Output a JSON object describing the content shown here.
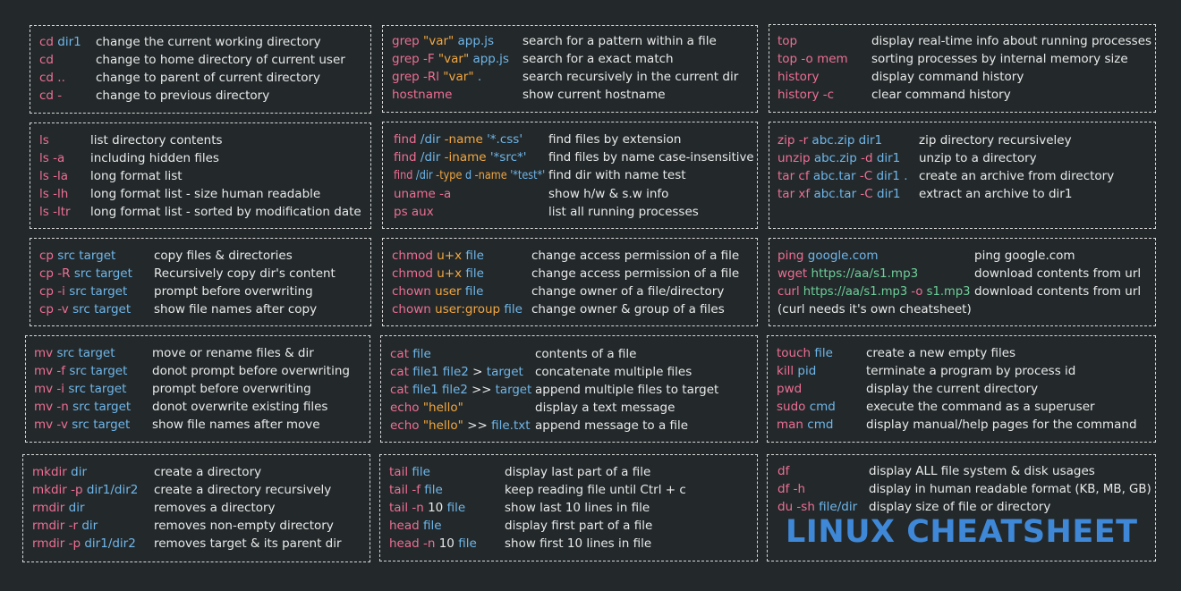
{
  "title": "LINUX CHEATSHEET",
  "colors": {
    "pink": "#ee6e93",
    "blue": "#6fb6ea",
    "orange": "#f2a640",
    "green": "#6ecf9a",
    "text": "#e9e9e9",
    "background": "#23292b",
    "title": "#3f88d8"
  },
  "blocks": [
    {
      "id": "cd",
      "rows": [
        {
          "cmd": [
            [
              "cd ",
              "pink"
            ],
            [
              "dir1",
              "blue"
            ]
          ],
          "desc": "change the current working directory"
        },
        {
          "cmd": [
            [
              "cd",
              "pink"
            ]
          ],
          "desc": "change to home directory of current user"
        },
        {
          "cmd": [
            [
              "cd ..",
              "pink"
            ]
          ],
          "desc": "change to parent of current directory"
        },
        {
          "cmd": [
            [
              "cd -",
              "pink"
            ]
          ],
          "desc": "change to previous directory"
        }
      ]
    },
    {
      "id": "grep",
      "rows": [
        {
          "cmd": [
            [
              "grep ",
              "pink"
            ],
            [
              "\"var\" ",
              "orange"
            ],
            [
              "app.js",
              "blue"
            ]
          ],
          "desc": "search for a pattern within a file"
        },
        {
          "cmd": [
            [
              "grep -F ",
              "pink"
            ],
            [
              "\"var\" ",
              "orange"
            ],
            [
              "app.js",
              "blue"
            ]
          ],
          "desc": "search for a exact match"
        },
        {
          "cmd": [
            [
              "grep -Rl ",
              "pink"
            ],
            [
              "\"var\" ",
              "orange"
            ],
            [
              ".",
              "blue"
            ]
          ],
          "desc": "search recursively in the current dir"
        },
        {
          "cmd": [
            [
              "hostname",
              "pink"
            ]
          ],
          "desc": "show current hostname"
        }
      ]
    },
    {
      "id": "top",
      "rows": [
        {
          "cmd": [
            [
              "top",
              "pink"
            ]
          ],
          "desc": "display real-time info about running processes"
        },
        {
          "cmd": [
            [
              "top -o mem",
              "pink"
            ]
          ],
          "desc": "sorting processes by internal memory size"
        },
        {
          "cmd": [
            [
              "history",
              "pink"
            ]
          ],
          "desc": "display command history"
        },
        {
          "cmd": [
            [
              "history -c",
              "pink"
            ]
          ],
          "desc": "clear command history"
        }
      ]
    },
    {
      "id": "ls",
      "rows": [
        {
          "cmd": [
            [
              "ls",
              "pink"
            ]
          ],
          "desc": "list directory contents"
        },
        {
          "cmd": [
            [
              "ls -a",
              "pink"
            ]
          ],
          "desc": "including hidden files"
        },
        {
          "cmd": [
            [
              "ls -la",
              "pink"
            ]
          ],
          "desc": "long format list"
        },
        {
          "cmd": [
            [
              "ls -lh",
              "pink"
            ]
          ],
          "desc": "long format list - size human readable"
        },
        {
          "cmd": [
            [
              "ls -ltr",
              "pink"
            ]
          ],
          "desc": "long format list - sorted by modification date"
        }
      ]
    },
    {
      "id": "find",
      "rows": [
        {
          "cmd": [
            [
              "find ",
              "pink"
            ],
            [
              "/dir ",
              "blue"
            ],
            [
              "-name ",
              "orange"
            ],
            [
              "'*.css'",
              "blue"
            ]
          ],
          "desc": "find files by extension"
        },
        {
          "cmd": [
            [
              "find ",
              "pink"
            ],
            [
              "/dir ",
              "blue"
            ],
            [
              "-iname ",
              "orange"
            ],
            [
              "'*src*'",
              "blue"
            ]
          ],
          "desc": "find files by name case-insensitive"
        },
        {
          "cmd": [
            [
              "find ",
              "pink"
            ],
            [
              "/dir ",
              "blue"
            ],
            [
              "-type ",
              "orange"
            ],
            [
              "d ",
              "blue"
            ],
            [
              "-name ",
              "orange"
            ],
            [
              "'*test*'",
              "blue"
            ]
          ],
          "desc": "find dir with name test"
        },
        {
          "cmd": [
            [
              "uname -a",
              "pink"
            ]
          ],
          "desc": "show h/w & s.w info"
        },
        {
          "cmd": [
            [
              "ps aux",
              "pink"
            ]
          ],
          "desc": "list all running processes"
        }
      ]
    },
    {
      "id": "zip",
      "rows": [
        {
          "cmd": [
            [
              "zip -r ",
              "pink"
            ],
            [
              "abc.zip dir1",
              "blue"
            ]
          ],
          "desc": "zip directory recursiveley"
        },
        {
          "cmd": [
            [
              "unzip ",
              "pink"
            ],
            [
              "abc.zip ",
              "blue"
            ],
            [
              "-d ",
              "pink"
            ],
            [
              "dir1",
              "blue"
            ]
          ],
          "desc": "unzip to a directory"
        },
        {
          "cmd": [
            [
              "tar cf ",
              "pink"
            ],
            [
              "abc.tar ",
              "blue"
            ],
            [
              "-C ",
              "pink"
            ],
            [
              "dir1 .",
              "blue"
            ]
          ],
          "desc": "create an archive from directory"
        },
        {
          "cmd": [
            [
              "tar xf ",
              "pink"
            ],
            [
              "abc.tar ",
              "blue"
            ],
            [
              "-C ",
              "pink"
            ],
            [
              "dir1",
              "blue"
            ]
          ],
          "desc": "extract an archive to dir1"
        }
      ]
    },
    {
      "id": "cp",
      "rows": [
        {
          "cmd": [
            [
              "cp ",
              "pink"
            ],
            [
              "src target",
              "blue"
            ]
          ],
          "desc": "copy files & directories"
        },
        {
          "cmd": [
            [
              "cp -R ",
              "pink"
            ],
            [
              "src target",
              "blue"
            ]
          ],
          "desc": "Recursively copy dir's content"
        },
        {
          "cmd": [
            [
              "cp -i ",
              "pink"
            ],
            [
              "src target",
              "blue"
            ]
          ],
          "desc": "prompt before overwriting"
        },
        {
          "cmd": [
            [
              "cp -v ",
              "pink"
            ],
            [
              "src target",
              "blue"
            ]
          ],
          "desc": "show file names after copy"
        }
      ]
    },
    {
      "id": "chmod",
      "rows": [
        {
          "cmd": [
            [
              "chmod ",
              "pink"
            ],
            [
              "u+x ",
              "orange"
            ],
            [
              "file",
              "blue"
            ]
          ],
          "desc": "change access permission of a file"
        },
        {
          "cmd": [
            [
              "chmod ",
              "pink"
            ],
            [
              "u+x ",
              "orange"
            ],
            [
              "file",
              "blue"
            ]
          ],
          "desc": "change access permission of a file"
        },
        {
          "cmd": [
            [
              "chown ",
              "pink"
            ],
            [
              "user ",
              "orange"
            ],
            [
              "file",
              "blue"
            ]
          ],
          "desc": "change owner of a file/directory"
        },
        {
          "cmd": [
            [
              "chown ",
              "pink"
            ],
            [
              "user:group ",
              "orange"
            ],
            [
              "file",
              "blue"
            ]
          ],
          "desc": "change owner & group of a files"
        }
      ]
    },
    {
      "id": "ping",
      "rows": [
        {
          "cmd": [
            [
              "ping ",
              "pink"
            ],
            [
              "google.com",
              "blue"
            ]
          ],
          "desc": "ping google.com"
        },
        {
          "cmd": [
            [
              "wget ",
              "pink"
            ],
            [
              "https://aa/s1.mp3",
              "green"
            ]
          ],
          "desc": "download contents from url"
        },
        {
          "cmd": [
            [
              "curl ",
              "pink"
            ],
            [
              "https://aa/s1.mp3 ",
              "green"
            ],
            [
              "-o ",
              "pink"
            ],
            [
              "s1.mp3",
              "green"
            ]
          ],
          "desc": "download contents from url"
        },
        {
          "cmd": [
            [
              "(curl needs it's own cheatsheet)",
              "text"
            ]
          ],
          "desc": ""
        }
      ]
    },
    {
      "id": "mv",
      "rows": [
        {
          "cmd": [
            [
              "mv ",
              "pink"
            ],
            [
              "src target",
              "blue"
            ]
          ],
          "desc": "move or rename files & dir"
        },
        {
          "cmd": [
            [
              "mv -f ",
              "pink"
            ],
            [
              "src target",
              "blue"
            ]
          ],
          "desc": "donot prompt before overwriting"
        },
        {
          "cmd": [
            [
              "mv -i ",
              "pink"
            ],
            [
              "src target",
              "blue"
            ]
          ],
          "desc": "prompt before overwriting"
        },
        {
          "cmd": [
            [
              "mv -n ",
              "pink"
            ],
            [
              "src target",
              "blue"
            ]
          ],
          "desc": "donot overwrite existing files"
        },
        {
          "cmd": [
            [
              "mv -v ",
              "pink"
            ],
            [
              "src target",
              "blue"
            ]
          ],
          "desc": "show file names after move"
        }
      ]
    },
    {
      "id": "cat",
      "rows": [
        {
          "cmd": [
            [
              "cat ",
              "pink"
            ],
            [
              "file",
              "blue"
            ]
          ],
          "desc": "contents of a file"
        },
        {
          "cmd": [
            [
              "cat ",
              "pink"
            ],
            [
              "file1 file2 ",
              "blue"
            ],
            [
              "> ",
              "text"
            ],
            [
              "target",
              "blue"
            ]
          ],
          "desc": "concatenate multiple files"
        },
        {
          "cmd": [
            [
              "cat ",
              "pink"
            ],
            [
              "file1 file2 ",
              "blue"
            ],
            [
              ">> ",
              "text"
            ],
            [
              "target",
              "blue"
            ]
          ],
          "desc": "append multiple files to target"
        },
        {
          "cmd": [
            [
              "echo ",
              "pink"
            ],
            [
              "\"hello\"",
              "orange"
            ]
          ],
          "desc": "display a text message"
        },
        {
          "cmd": [
            [
              "echo ",
              "pink"
            ],
            [
              "\"hello\" ",
              "orange"
            ],
            [
              ">> ",
              "text"
            ],
            [
              "file.txt",
              "blue"
            ]
          ],
          "desc": "append message to a file"
        }
      ]
    },
    {
      "id": "touch",
      "rows": [
        {
          "cmd": [
            [
              "touch ",
              "pink"
            ],
            [
              "file",
              "blue"
            ]
          ],
          "desc": "create a new empty files"
        },
        {
          "cmd": [
            [
              "kill ",
              "pink"
            ],
            [
              "pid",
              "blue"
            ]
          ],
          "desc": "terminate a program by process id"
        },
        {
          "cmd": [
            [
              "pwd",
              "pink"
            ]
          ],
          "desc": "display the current directory"
        },
        {
          "cmd": [
            [
              "sudo ",
              "pink"
            ],
            [
              "cmd",
              "blue"
            ]
          ],
          "desc": "execute the command as a superuser"
        },
        {
          "cmd": [
            [
              "man ",
              "pink"
            ],
            [
              "cmd",
              "blue"
            ]
          ],
          "desc": "display manual/help pages for the command"
        }
      ]
    },
    {
      "id": "mkdir",
      "rows": [
        {
          "cmd": [
            [
              "mkdir ",
              "pink"
            ],
            [
              "dir",
              "blue"
            ]
          ],
          "desc": "create a directory"
        },
        {
          "cmd": [
            [
              "mkdir -p ",
              "pink"
            ],
            [
              "dir1/dir2",
              "blue"
            ]
          ],
          "desc": "create a directory recursively"
        },
        {
          "cmd": [
            [
              "rmdir ",
              "pink"
            ],
            [
              "dir",
              "blue"
            ]
          ],
          "desc": "removes a directory"
        },
        {
          "cmd": [
            [
              "rmdir -r ",
              "pink"
            ],
            [
              "dir",
              "blue"
            ]
          ],
          "desc": "removes non-empty directory"
        },
        {
          "cmd": [
            [
              "rmdir -p ",
              "pink"
            ],
            [
              "dir1/dir2",
              "blue"
            ]
          ],
          "desc": "removes target & its parent dir"
        }
      ]
    },
    {
      "id": "tail",
      "rows": [
        {
          "cmd": [
            [
              "tail ",
              "pink"
            ],
            [
              "file",
              "blue"
            ]
          ],
          "desc": "display last part of a file"
        },
        {
          "cmd": [
            [
              "tail -f ",
              "pink"
            ],
            [
              "file",
              "blue"
            ]
          ],
          "desc": "keep reading file until Ctrl + c"
        },
        {
          "cmd": [
            [
              "tail -n ",
              "pink"
            ],
            [
              "10 ",
              "text"
            ],
            [
              "file",
              "blue"
            ]
          ],
          "desc": "show last 10 lines in file"
        },
        {
          "cmd": [
            [
              "head ",
              "pink"
            ],
            [
              "file",
              "blue"
            ]
          ],
          "desc": "display first part of a file"
        },
        {
          "cmd": [
            [
              "head -n ",
              "pink"
            ],
            [
              "10 ",
              "text"
            ],
            [
              "file",
              "blue"
            ]
          ],
          "desc": "show first 10 lines in file"
        }
      ]
    },
    {
      "id": "df",
      "rows": [
        {
          "cmd": [
            [
              "df",
              "pink"
            ]
          ],
          "desc": "display ALL file system & disk usages"
        },
        {
          "cmd": [
            [
              "df -h",
              "pink"
            ]
          ],
          "desc": "display in human readable format (KB, MB, GB)"
        },
        {
          "cmd": [
            [
              "du -sh ",
              "pink"
            ],
            [
              "file/dir",
              "blue"
            ]
          ],
          "desc": "display size of file or directory"
        }
      ]
    }
  ]
}
